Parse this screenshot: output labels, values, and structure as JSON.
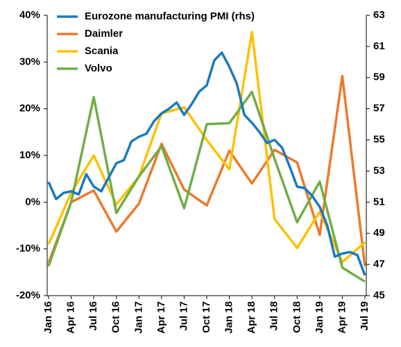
{
  "chart_data": {
    "type": "line",
    "categories": [
      "Jan 16",
      null,
      null,
      "Apr 16",
      null,
      null,
      "Jul 16",
      null,
      null,
      "Oct 16",
      null,
      null,
      "Jan 17",
      null,
      null,
      "Apr 17",
      null,
      null,
      "Jul 17",
      null,
      null,
      "Oct 17",
      null,
      null,
      "Jan 18",
      null,
      null,
      "Apr 18",
      null,
      null,
      "Jul 18",
      null,
      null,
      "Oct 18",
      null,
      null,
      "Jan 19",
      null,
      null,
      "Apr 19",
      null,
      null,
      "Jul 19"
    ],
    "series": [
      {
        "name": "Eurozone manufacturing PMI (rhs)",
        "color": "#1a7abf",
        "axis": "y2",
        "values": [
          52.3,
          51.2,
          51.6,
          51.7,
          51.5,
          52.8,
          52.0,
          51.7,
          52.6,
          53.5,
          53.7,
          54.9,
          55.2,
          55.4,
          56.2,
          56.7,
          57.0,
          57.4,
          56.6,
          57.3,
          58.1,
          58.5,
          60.1,
          60.6,
          59.7,
          58.6,
          56.6,
          56.1,
          55.5,
          54.8,
          55.0,
          54.5,
          53.3,
          52.0,
          51.9,
          51.4,
          50.7,
          49.5,
          47.5,
          47.7,
          47.8,
          47.6,
          46.3
        ]
      },
      {
        "name": "Daimler",
        "color": "#ec7a2a",
        "x": [
          "Jan 16",
          "Apr 16",
          "Jul 16",
          "Oct 16",
          "Jan 17",
          "Apr 17",
          "Jul 17",
          "Oct 17",
          "Jan 18",
          "Apr 18",
          "Jul 18",
          "Oct 18",
          "Jan 19",
          "Apr 19",
          "Jul 19"
        ],
        "values": [
          -13,
          0,
          2.5,
          -6.3,
          -0.3,
          12.5,
          2.7,
          -0.7,
          11,
          4,
          11.2,
          8.5,
          -7,
          27,
          -13.7
        ]
      },
      {
        "name": "Scania",
        "color": "#ffc000",
        "x": [
          "Jan 16",
          "Apr 16",
          "Jul 16",
          "Oct 16",
          "Jan 17",
          "Apr 17",
          "Jul 17",
          "Oct 17",
          "Jan 18",
          "Apr 18",
          "Jul 18",
          "Oct 18",
          "Jan 19",
          "Apr 19",
          "Jul 19"
        ],
        "values": [
          -9,
          2,
          10,
          -0.5,
          5.5,
          19,
          20.3,
          13.3,
          7,
          36.4,
          -3.6,
          -9.8,
          -2,
          -12.8,
          -8.6
        ]
      },
      {
        "name": "Volvo",
        "color": "#70ad47",
        "x": [
          "Jan 16",
          "Apr 16",
          "Jul 16",
          "Oct 16",
          "Jan 17",
          "Apr 17",
          "Jul 17",
          "Oct 17",
          "Jan 18",
          "Apr 18",
          "Jul 18",
          "Oct 18",
          "Jan 19",
          "Apr 19",
          "Jul 19"
        ],
        "values": [
          -13.7,
          0,
          22.5,
          -2.3,
          5.5,
          12,
          -1.3,
          16.7,
          16.9,
          23.6,
          9.3,
          -4.3,
          4.4,
          -14,
          -17
        ]
      }
    ],
    "ylim": [
      -20,
      40
    ],
    "yticks": [
      {
        "value": -20,
        "label": "-20%"
      },
      {
        "value": -10,
        "label": "-10%"
      },
      {
        "value": 0,
        "label": "0%"
      },
      {
        "value": 10,
        "label": "10%"
      },
      {
        "value": 20,
        "label": "20%"
      },
      {
        "value": 30,
        "label": "30%"
      },
      {
        "value": 40,
        "label": "40%"
      }
    ],
    "y2lim": [
      45,
      63
    ],
    "y2ticks": [
      45,
      47,
      49,
      51,
      53,
      55,
      57,
      59,
      61,
      63
    ],
    "legend": "top-left",
    "grid": false
  }
}
